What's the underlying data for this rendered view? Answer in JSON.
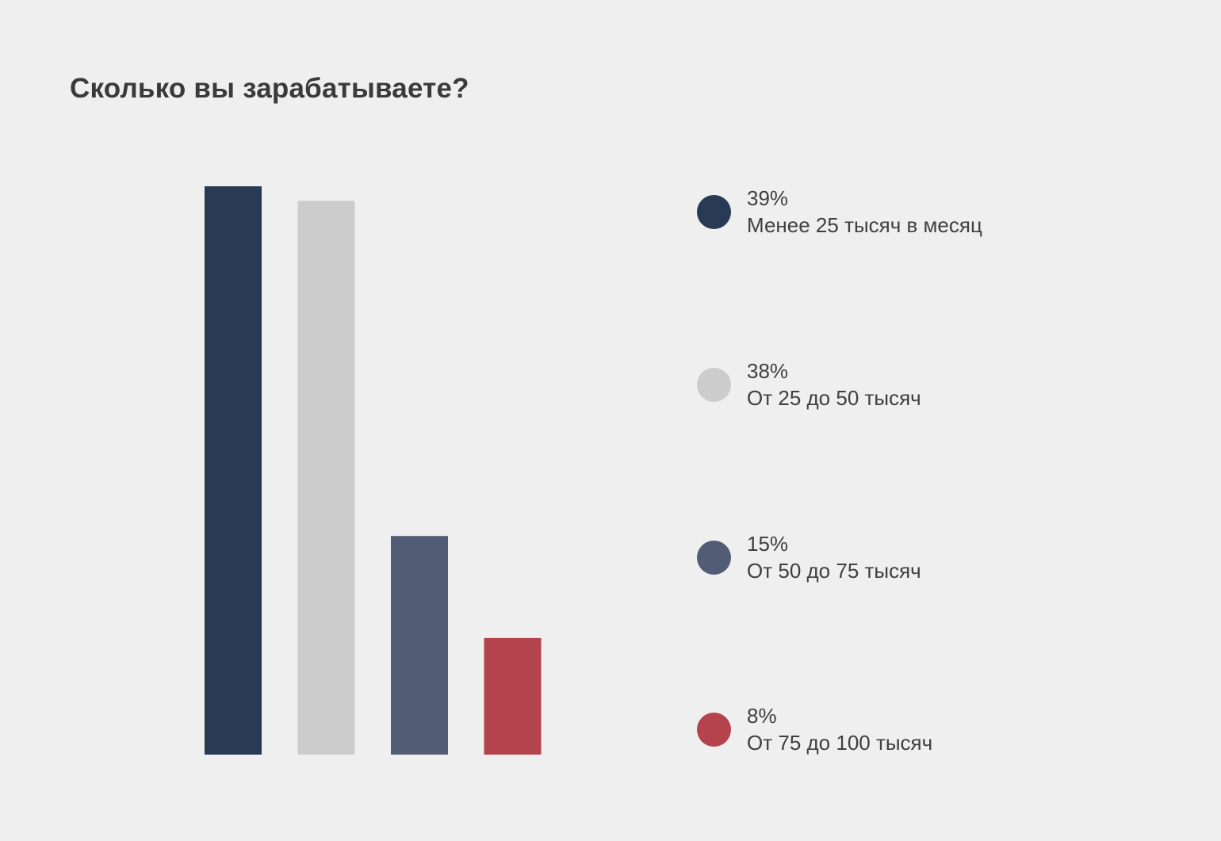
{
  "chart_data": {
    "type": "bar",
    "title": "Сколько вы зарабатываете?",
    "categories": [
      "Менее 25 тысяч в месяц",
      "От 25 до 50 тысяч",
      "От 50 до 75 тысяч",
      "От 75 до 100 тысяч"
    ],
    "values": [
      39,
      38,
      15,
      8
    ],
    "value_labels": [
      "39%",
      "38%",
      "15%",
      "8%"
    ],
    "colors": [
      "#293a54",
      "#cccccc",
      "#525c75",
      "#b5434e"
    ],
    "ylim": [
      0,
      39
    ],
    "grid": false,
    "legend_position": "right"
  }
}
